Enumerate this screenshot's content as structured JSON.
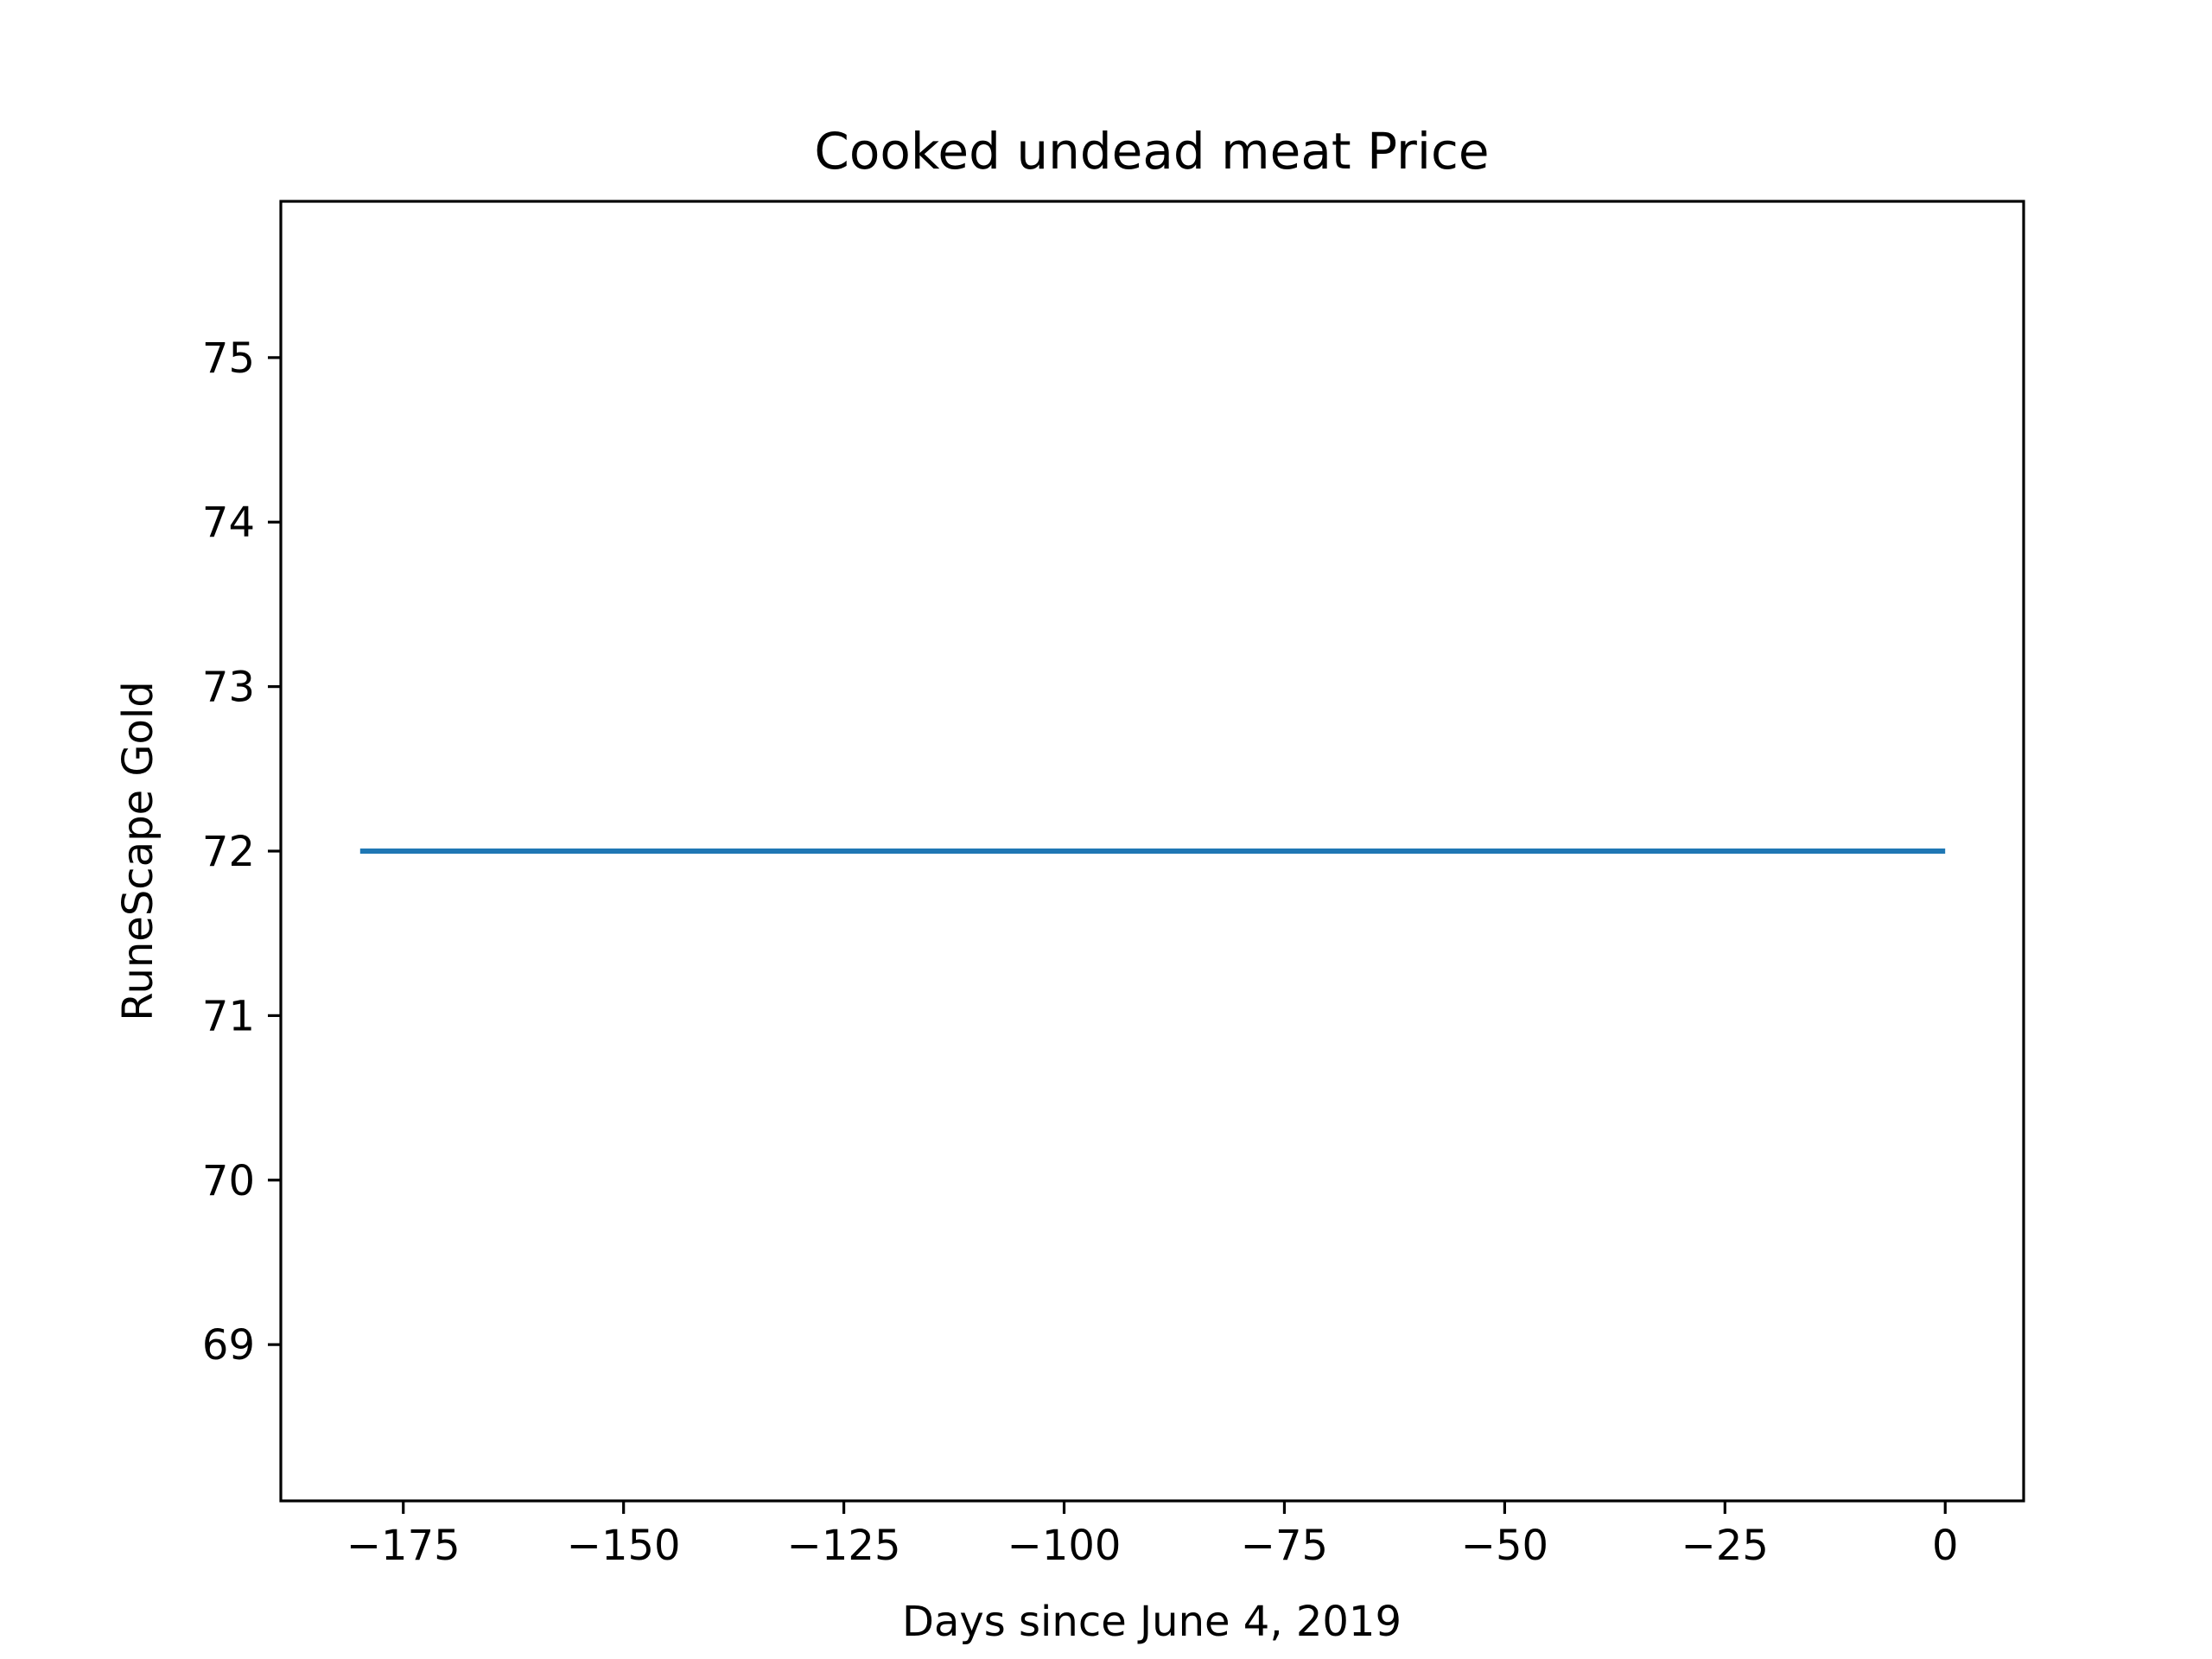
{
  "chart_data": {
    "type": "line",
    "title": "Cooked undead meat Price",
    "xlabel": "Days since June 4, 2019",
    "ylabel": "RuneScape Gold",
    "xlim": [
      -188.9,
      8.9
    ],
    "ylim": [
      68.05,
      75.95
    ],
    "xticks": [
      -175,
      -150,
      -125,
      -100,
      -75,
      -50,
      -25,
      0
    ],
    "xtick_labels": [
      "−175",
      "−150",
      "−125",
      "−100",
      "−75",
      "−50",
      "−25",
      "0"
    ],
    "yticks": [
      69,
      70,
      71,
      72,
      73,
      74,
      75
    ],
    "ytick_labels": [
      "69",
      "70",
      "71",
      "72",
      "73",
      "74",
      "75"
    ],
    "grid": false,
    "legend": "none",
    "series": [
      {
        "color": "#1f77b4",
        "x": [
          -179.9,
          0
        ],
        "y": [
          72,
          72
        ]
      }
    ]
  }
}
